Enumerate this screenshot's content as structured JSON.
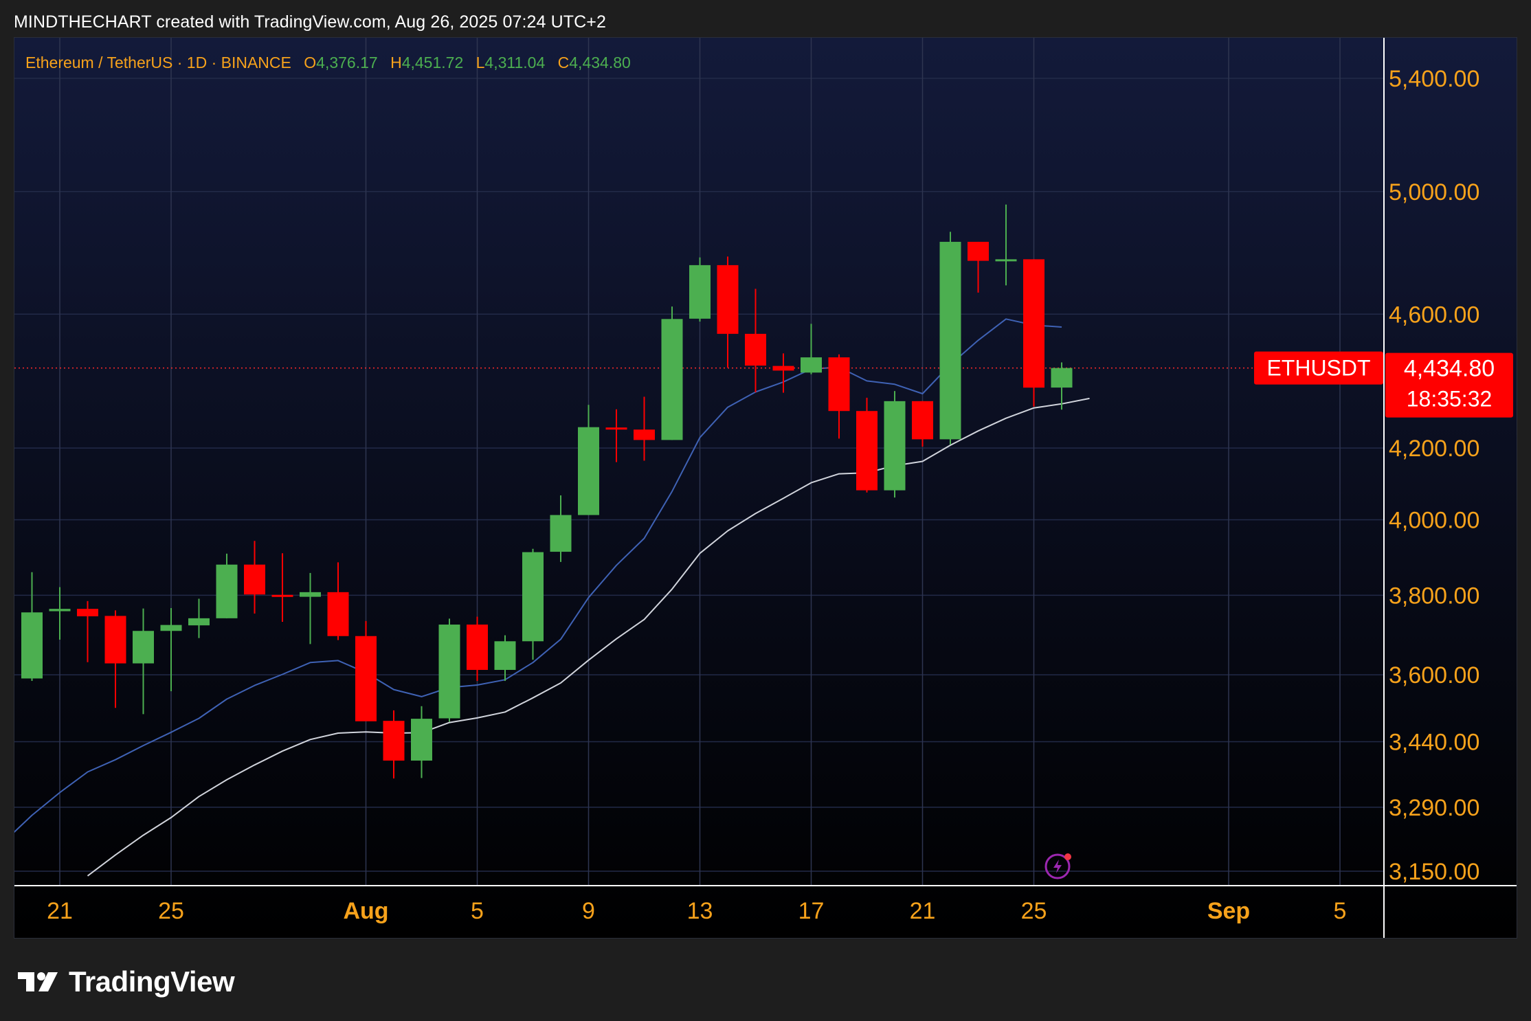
{
  "header": {
    "caption": "MINDTHECHART created with TradingView.com, Aug 26, 2025 07:24 UTC+2"
  },
  "legend": {
    "symbol": "Ethereum / TetherUS · 1D · BINANCE",
    "o_label": "O",
    "o_value": "4,376.17",
    "h_label": "H",
    "h_value": "4,451.72",
    "l_label": "L",
    "l_value": "4,311.04",
    "c_label": "C",
    "c_value": "4,434.80"
  },
  "price_tag": {
    "symbol": "ETHUSDT",
    "price": "4,434.80",
    "countdown": "18:35:32"
  },
  "footer": {
    "brand": "TradingView"
  },
  "colors": {
    "up": "#4caf50",
    "down": "#ff0000",
    "accent": "#f7a21b",
    "ma_fast": "#3f62b5",
    "ma_slow": "#d1d4dc",
    "bg_top": "#131a3a",
    "bg_bottom": "#000000"
  },
  "icons": {
    "logo": "tradingview-logo-icon",
    "snapshot": "lightning-icon"
  },
  "chart_data": {
    "type": "candlestick",
    "title": "",
    "y_scale": "log",
    "y_ticks": [
      5400,
      5000,
      4600,
      4200,
      4000,
      3800,
      3600,
      3440,
      3290,
      3150
    ],
    "y_tick_labels": [
      "5,400.00",
      "5,000.00",
      "4,600.00",
      "4,200.00",
      "4,000.00",
      "3,800.00",
      "3,600.00",
      "3,440.00",
      "3,290.00",
      "3,150.00"
    ],
    "x_ticks": [
      {
        "date": "2025-07-21",
        "label": "21",
        "major": false
      },
      {
        "date": "2025-07-25",
        "label": "25",
        "major": false
      },
      {
        "date": "2025-08-01",
        "label": "Aug",
        "major": true
      },
      {
        "date": "2025-08-05",
        "label": "5",
        "major": false
      },
      {
        "date": "2025-08-09",
        "label": "9",
        "major": false
      },
      {
        "date": "2025-08-13",
        "label": "13",
        "major": false
      },
      {
        "date": "2025-08-17",
        "label": "17",
        "major": false
      },
      {
        "date": "2025-08-21",
        "label": "21",
        "major": false
      },
      {
        "date": "2025-08-25",
        "label": "25",
        "major": false
      },
      {
        "date": "2025-09-01",
        "label": "Sep",
        "major": true
      },
      {
        "date": "2025-09-05",
        "label": "5",
        "major": false
      }
    ],
    "x_range": [
      "2025-07-19",
      "2025-09-06"
    ],
    "candles": [
      {
        "date": "2025-07-20",
        "o": 3591,
        "h": 3860,
        "l": 3585,
        "c": 3756
      },
      {
        "date": "2025-07-21",
        "o": 3759,
        "h": 3821,
        "l": 3687,
        "c": 3765
      },
      {
        "date": "2025-07-22",
        "o": 3765,
        "h": 3785,
        "l": 3631,
        "c": 3746
      },
      {
        "date": "2025-07-23",
        "o": 3747,
        "h": 3761,
        "l": 3520,
        "c": 3628
      },
      {
        "date": "2025-07-24",
        "o": 3628,
        "h": 3766,
        "l": 3505,
        "c": 3709
      },
      {
        "date": "2025-07-25",
        "o": 3709,
        "h": 3767,
        "l": 3560,
        "c": 3724
      },
      {
        "date": "2025-07-26",
        "o": 3723,
        "h": 3791,
        "l": 3691,
        "c": 3741
      },
      {
        "date": "2025-07-27",
        "o": 3741,
        "h": 3909,
        "l": 3741,
        "c": 3880
      },
      {
        "date": "2025-07-28",
        "o": 3880,
        "h": 3943,
        "l": 3753,
        "c": 3802
      },
      {
        "date": "2025-07-29",
        "o": 3801,
        "h": 3910,
        "l": 3732,
        "c": 3797
      },
      {
        "date": "2025-07-30",
        "o": 3796,
        "h": 3858,
        "l": 3676,
        "c": 3808
      },
      {
        "date": "2025-07-31",
        "o": 3808,
        "h": 3886,
        "l": 3686,
        "c": 3696
      },
      {
        "date": "2025-08-01",
        "o": 3696,
        "h": 3734,
        "l": 3494,
        "c": 3488
      },
      {
        "date": "2025-08-02",
        "o": 3489,
        "h": 3514,
        "l": 3355,
        "c": 3396
      },
      {
        "date": "2025-08-03",
        "o": 3396,
        "h": 3524,
        "l": 3356,
        "c": 3494
      },
      {
        "date": "2025-08-04",
        "o": 3495,
        "h": 3740,
        "l": 3487,
        "c": 3725
      },
      {
        "date": "2025-08-05",
        "o": 3725,
        "h": 3745,
        "l": 3585,
        "c": 3612
      },
      {
        "date": "2025-08-06",
        "o": 3612,
        "h": 3698,
        "l": 3585,
        "c": 3683
      },
      {
        "date": "2025-08-07",
        "o": 3683,
        "h": 3922,
        "l": 3637,
        "c": 3913
      },
      {
        "date": "2025-08-08",
        "o": 3914,
        "h": 4067,
        "l": 3887,
        "c": 4013
      },
      {
        "date": "2025-08-09",
        "o": 4013,
        "h": 4325,
        "l": 4013,
        "c": 4260
      },
      {
        "date": "2025-08-10",
        "o": 4259,
        "h": 4312,
        "l": 4160,
        "c": 4253
      },
      {
        "date": "2025-08-11",
        "o": 4253,
        "h": 4349,
        "l": 4164,
        "c": 4223
      },
      {
        "date": "2025-08-12",
        "o": 4223,
        "h": 4624,
        "l": 4223,
        "c": 4585
      },
      {
        "date": "2025-08-13",
        "o": 4586,
        "h": 4781,
        "l": 4577,
        "c": 4756
      },
      {
        "date": "2025-08-14",
        "o": 4756,
        "h": 4784,
        "l": 4436,
        "c": 4539
      },
      {
        "date": "2025-08-15",
        "o": 4539,
        "h": 4680,
        "l": 4362,
        "c": 4442
      },
      {
        "date": "2025-08-16",
        "o": 4441,
        "h": 4479,
        "l": 4361,
        "c": 4427
      },
      {
        "date": "2025-08-17",
        "o": 4421,
        "h": 4570,
        "l": 4416,
        "c": 4467
      },
      {
        "date": "2025-08-18",
        "o": 4467,
        "h": 4476,
        "l": 4227,
        "c": 4307
      },
      {
        "date": "2025-08-19",
        "o": 4307,
        "h": 4346,
        "l": 4075,
        "c": 4081
      },
      {
        "date": "2025-08-20",
        "o": 4081,
        "h": 4366,
        "l": 4061,
        "c": 4336
      },
      {
        "date": "2025-08-21",
        "o": 4336,
        "h": 4336,
        "l": 4204,
        "c": 4225
      },
      {
        "date": "2025-08-22",
        "o": 4225,
        "h": 4865,
        "l": 4210,
        "c": 4832
      },
      {
        "date": "2025-08-23",
        "o": 4832,
        "h": 4832,
        "l": 4668,
        "c": 4770
      },
      {
        "date": "2025-08-24",
        "o": 4770,
        "h": 4956,
        "l": 4691,
        "c": 4775
      },
      {
        "date": "2025-08-25",
        "o": 4775,
        "h": 4775,
        "l": 4320,
        "c": 4376
      },
      {
        "date": "2025-08-26",
        "o": 4376.17,
        "h": 4451.72,
        "l": 4311.04,
        "c": 4434.8
      }
    ],
    "series": [
      {
        "type": "line",
        "values": [
          {
            "date": "2025-07-19",
            "v": 3214
          },
          {
            "date": "2025-07-20",
            "v": 3272
          },
          {
            "date": "2025-07-21",
            "v": 3323
          },
          {
            "date": "2025-07-22",
            "v": 3370
          },
          {
            "date": "2025-07-23",
            "v": 3398
          },
          {
            "date": "2025-07-24",
            "v": 3431
          },
          {
            "date": "2025-07-25",
            "v": 3462
          },
          {
            "date": "2025-07-26",
            "v": 3495
          },
          {
            "date": "2025-07-27",
            "v": 3541
          },
          {
            "date": "2025-07-28",
            "v": 3574
          },
          {
            "date": "2025-07-29",
            "v": 3601
          },
          {
            "date": "2025-07-30",
            "v": 3630
          },
          {
            "date": "2025-07-31",
            "v": 3635
          },
          {
            "date": "2025-08-01",
            "v": 3605
          },
          {
            "date": "2025-08-02",
            "v": 3564
          },
          {
            "date": "2025-08-03",
            "v": 3547
          },
          {
            "date": "2025-08-04",
            "v": 3569
          },
          {
            "date": "2025-08-05",
            "v": 3575
          },
          {
            "date": "2025-08-06",
            "v": 3588
          },
          {
            "date": "2025-08-07",
            "v": 3630
          },
          {
            "date": "2025-08-08",
            "v": 3688
          },
          {
            "date": "2025-08-09",
            "v": 3794
          },
          {
            "date": "2025-08-10",
            "v": 3878
          },
          {
            "date": "2025-08-11",
            "v": 3950
          },
          {
            "date": "2025-08-12",
            "v": 4078
          },
          {
            "date": "2025-08-13",
            "v": 4230
          },
          {
            "date": "2025-08-14",
            "v": 4318
          },
          {
            "date": "2025-08-15",
            "v": 4363
          },
          {
            "date": "2025-08-16",
            "v": 4393
          },
          {
            "date": "2025-08-17",
            "v": 4432
          },
          {
            "date": "2025-08-18",
            "v": 4437
          },
          {
            "date": "2025-08-19",
            "v": 4396
          },
          {
            "date": "2025-08-20",
            "v": 4386
          },
          {
            "date": "2025-08-21",
            "v": 4358
          },
          {
            "date": "2025-08-22",
            "v": 4445
          },
          {
            "date": "2025-08-23",
            "v": 4519
          },
          {
            "date": "2025-08-24",
            "v": 4585
          },
          {
            "date": "2025-08-25",
            "v": 4566
          },
          {
            "date": "2025-08-26",
            "v": 4560
          }
        ]
      },
      {
        "type": "line",
        "values": [
          {
            "date": "2025-07-22",
            "v": 3140
          },
          {
            "date": "2025-07-23",
            "v": 3185
          },
          {
            "date": "2025-07-24",
            "v": 3228
          },
          {
            "date": "2025-07-25",
            "v": 3267
          },
          {
            "date": "2025-07-26",
            "v": 3314
          },
          {
            "date": "2025-07-27",
            "v": 3352
          },
          {
            "date": "2025-07-28",
            "v": 3386
          },
          {
            "date": "2025-07-29",
            "v": 3418
          },
          {
            "date": "2025-07-30",
            "v": 3445
          },
          {
            "date": "2025-07-31",
            "v": 3460
          },
          {
            "date": "2025-08-01",
            "v": 3463
          },
          {
            "date": "2025-08-02",
            "v": 3460
          },
          {
            "date": "2025-08-03",
            "v": 3461
          },
          {
            "date": "2025-08-04",
            "v": 3485
          },
          {
            "date": "2025-08-05",
            "v": 3496
          },
          {
            "date": "2025-08-06",
            "v": 3510
          },
          {
            "date": "2025-08-07",
            "v": 3544
          },
          {
            "date": "2025-08-08",
            "v": 3580
          },
          {
            "date": "2025-08-09",
            "v": 3636
          },
          {
            "date": "2025-08-10",
            "v": 3689
          },
          {
            "date": "2025-08-11",
            "v": 3738
          },
          {
            "date": "2025-08-12",
            "v": 3816
          },
          {
            "date": "2025-08-13",
            "v": 3910
          },
          {
            "date": "2025-08-14",
            "v": 3970
          },
          {
            "date": "2025-08-15",
            "v": 4017
          },
          {
            "date": "2025-08-16",
            "v": 4059
          },
          {
            "date": "2025-08-17",
            "v": 4102
          },
          {
            "date": "2025-08-18",
            "v": 4127
          },
          {
            "date": "2025-08-19",
            "v": 4130
          },
          {
            "date": "2025-08-20",
            "v": 4150
          },
          {
            "date": "2025-08-21",
            "v": 4162
          },
          {
            "date": "2025-08-22",
            "v": 4208
          },
          {
            "date": "2025-08-23",
            "v": 4249
          },
          {
            "date": "2025-08-24",
            "v": 4286
          },
          {
            "date": "2025-08-25",
            "v": 4316
          },
          {
            "date": "2025-08-26",
            "v": 4328
          },
          {
            "date": "2025-08-27",
            "v": 4344
          }
        ]
      }
    ],
    "current_price": 4434.8,
    "grid": true,
    "legend_position": "top-left"
  }
}
